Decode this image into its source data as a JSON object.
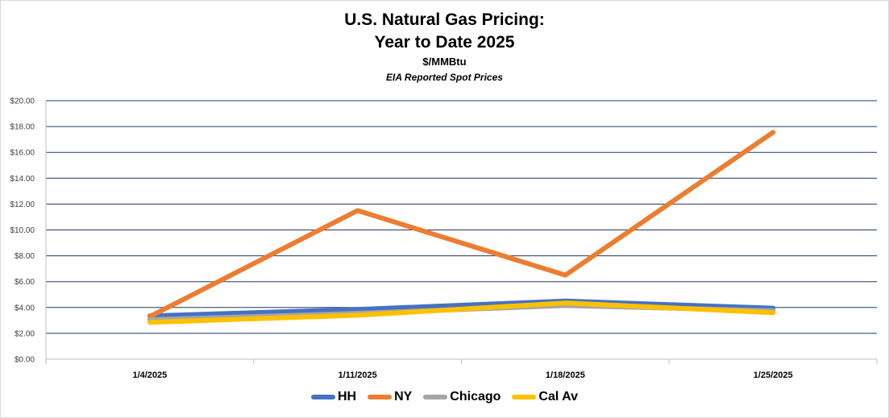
{
  "chart_data": {
    "type": "line",
    "title": "U.S. Natural Gas Pricing:",
    "title_line2": "Year to Date 2025",
    "subtitle": "$/MMBtu",
    "subtitle2": "EIA Reported Spot Prices",
    "xlabel": "",
    "ylabel": "",
    "categories": [
      "1/4/2025",
      "1/11/2025",
      "1/18/2025",
      "1/25/2025"
    ],
    "ylim": [
      0,
      20
    ],
    "y_ticks": [
      0,
      2,
      4,
      6,
      8,
      10,
      12,
      14,
      16,
      18,
      20
    ],
    "y_tick_labels": [
      "$0.00",
      "$2.00",
      "$4.00",
      "$6.00",
      "$8.00",
      "$10.00",
      "$12.00",
      "$14.00",
      "$16.00",
      "$18.00",
      "$20.00"
    ],
    "grid": true,
    "legend_position": "bottom",
    "series": [
      {
        "name": "HH",
        "color": "#4472c4",
        "values": [
          3.35,
          3.85,
          4.5,
          3.95
        ]
      },
      {
        "name": "NY",
        "color": "#ed7d31",
        "values": [
          3.3,
          11.5,
          6.5,
          17.55
        ]
      },
      {
        "name": "Chicago",
        "color": "#a5a5a5",
        "values": [
          3.05,
          3.55,
          4.15,
          3.75
        ]
      },
      {
        "name": "Cal Av",
        "color": "#ffc000",
        "values": [
          2.85,
          3.4,
          4.35,
          3.6
        ]
      }
    ]
  }
}
